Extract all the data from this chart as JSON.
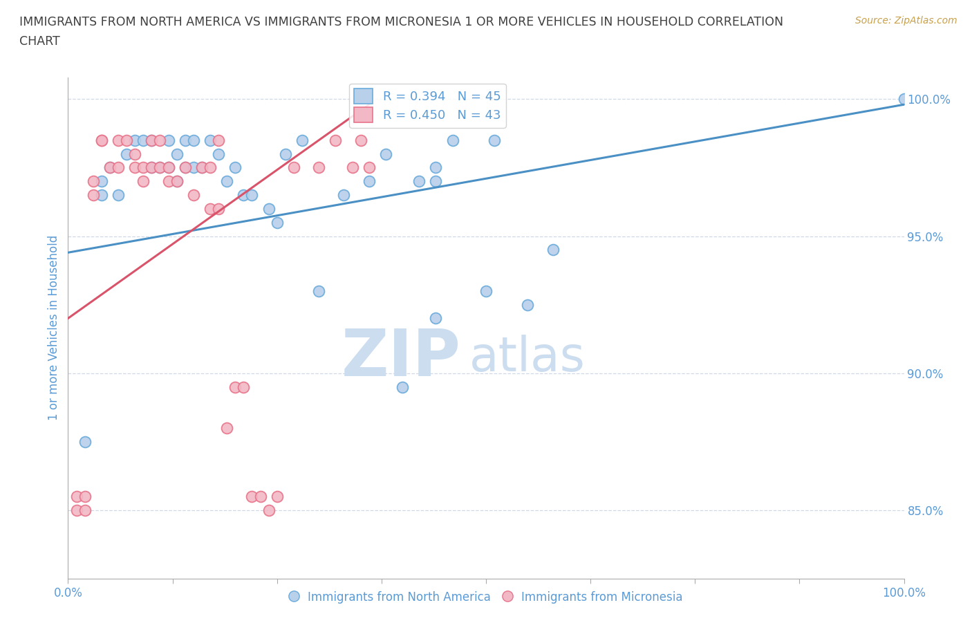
{
  "title_line1": "IMMIGRANTS FROM NORTH AMERICA VS IMMIGRANTS FROM MICRONESIA 1 OR MORE VEHICLES IN HOUSEHOLD CORRELATION",
  "title_line2": "CHART",
  "source_text": "Source: ZipAtlas.com",
  "ylabel": "1 or more Vehicles in Household",
  "xlim": [
    0.0,
    1.0
  ],
  "ylim": [
    0.825,
    1.008
  ],
  "ytick_positions": [
    0.85,
    0.9,
    0.95,
    1.0
  ],
  "xtick_positions": [
    0.0,
    0.125,
    0.25,
    0.375,
    0.5,
    0.625,
    0.75,
    0.875,
    1.0
  ],
  "xticklabels_show": [
    "0.0%",
    "100.0%"
  ],
  "watermark_line1": "ZIP",
  "watermark_line2": "atlas",
  "legend_blue_label": "Immigrants from North America",
  "legend_pink_label": "Immigrants from Micronesia",
  "R_blue": 0.394,
  "N_blue": 45,
  "R_pink": 0.45,
  "N_pink": 43,
  "blue_color": "#b8d0ea",
  "pink_color": "#f2b8c6",
  "blue_edge_color": "#6aabdc",
  "pink_edge_color": "#e8748a",
  "blue_line_color": "#4a90c4",
  "pink_line_color": "#d9546a",
  "title_color": "#404040",
  "source_color": "#c8a04a",
  "axis_label_color": "#5b9bd5",
  "tick_label_color": "#5b9bd5",
  "watermark_color": "#ccddf0",
  "grid_color": "#d0d8e8",
  "blue_scatter_x": [
    0.02,
    0.04,
    0.04,
    0.05,
    0.06,
    0.07,
    0.08,
    0.09,
    0.1,
    0.1,
    0.11,
    0.12,
    0.12,
    0.13,
    0.13,
    0.14,
    0.14,
    0.15,
    0.15,
    0.16,
    0.17,
    0.18,
    0.19,
    0.2,
    0.21,
    0.22,
    0.24,
    0.25,
    0.26,
    0.28,
    0.3,
    0.33,
    0.36,
    0.38,
    0.4,
    0.42,
    0.44,
    0.44,
    0.44,
    0.46,
    0.5,
    0.51,
    0.55,
    0.58,
    1.0
  ],
  "blue_scatter_y": [
    0.875,
    0.97,
    0.965,
    0.975,
    0.965,
    0.98,
    0.985,
    0.985,
    0.985,
    0.975,
    0.975,
    0.985,
    0.975,
    0.98,
    0.97,
    0.985,
    0.975,
    0.985,
    0.975,
    0.975,
    0.985,
    0.98,
    0.97,
    0.975,
    0.965,
    0.965,
    0.96,
    0.955,
    0.98,
    0.985,
    0.93,
    0.965,
    0.97,
    0.98,
    0.895,
    0.97,
    0.92,
    0.97,
    0.975,
    0.985,
    0.93,
    0.985,
    0.925,
    0.945,
    1.0
  ],
  "pink_scatter_x": [
    0.01,
    0.01,
    0.02,
    0.02,
    0.03,
    0.03,
    0.04,
    0.04,
    0.05,
    0.06,
    0.06,
    0.07,
    0.08,
    0.08,
    0.09,
    0.09,
    0.1,
    0.1,
    0.11,
    0.11,
    0.12,
    0.12,
    0.13,
    0.14,
    0.15,
    0.16,
    0.17,
    0.17,
    0.18,
    0.18,
    0.19,
    0.2,
    0.21,
    0.22,
    0.23,
    0.24,
    0.25,
    0.27,
    0.3,
    0.32,
    0.34,
    0.35,
    0.36
  ],
  "pink_scatter_y": [
    0.855,
    0.85,
    0.85,
    0.855,
    0.97,
    0.965,
    0.985,
    0.985,
    0.975,
    0.985,
    0.975,
    0.985,
    0.98,
    0.975,
    0.975,
    0.97,
    0.985,
    0.975,
    0.985,
    0.975,
    0.975,
    0.97,
    0.97,
    0.975,
    0.965,
    0.975,
    0.975,
    0.96,
    0.985,
    0.96,
    0.88,
    0.895,
    0.895,
    0.855,
    0.855,
    0.85,
    0.855,
    0.975,
    0.975,
    0.985,
    0.975,
    0.985,
    0.975
  ],
  "blue_line_x0": 0.0,
  "blue_line_y0": 0.944,
  "blue_line_x1": 1.0,
  "blue_line_y1": 0.998,
  "pink_line_x0": 0.0,
  "pink_line_y0": 0.92,
  "pink_line_x1": 0.36,
  "pink_line_y1": 0.998
}
